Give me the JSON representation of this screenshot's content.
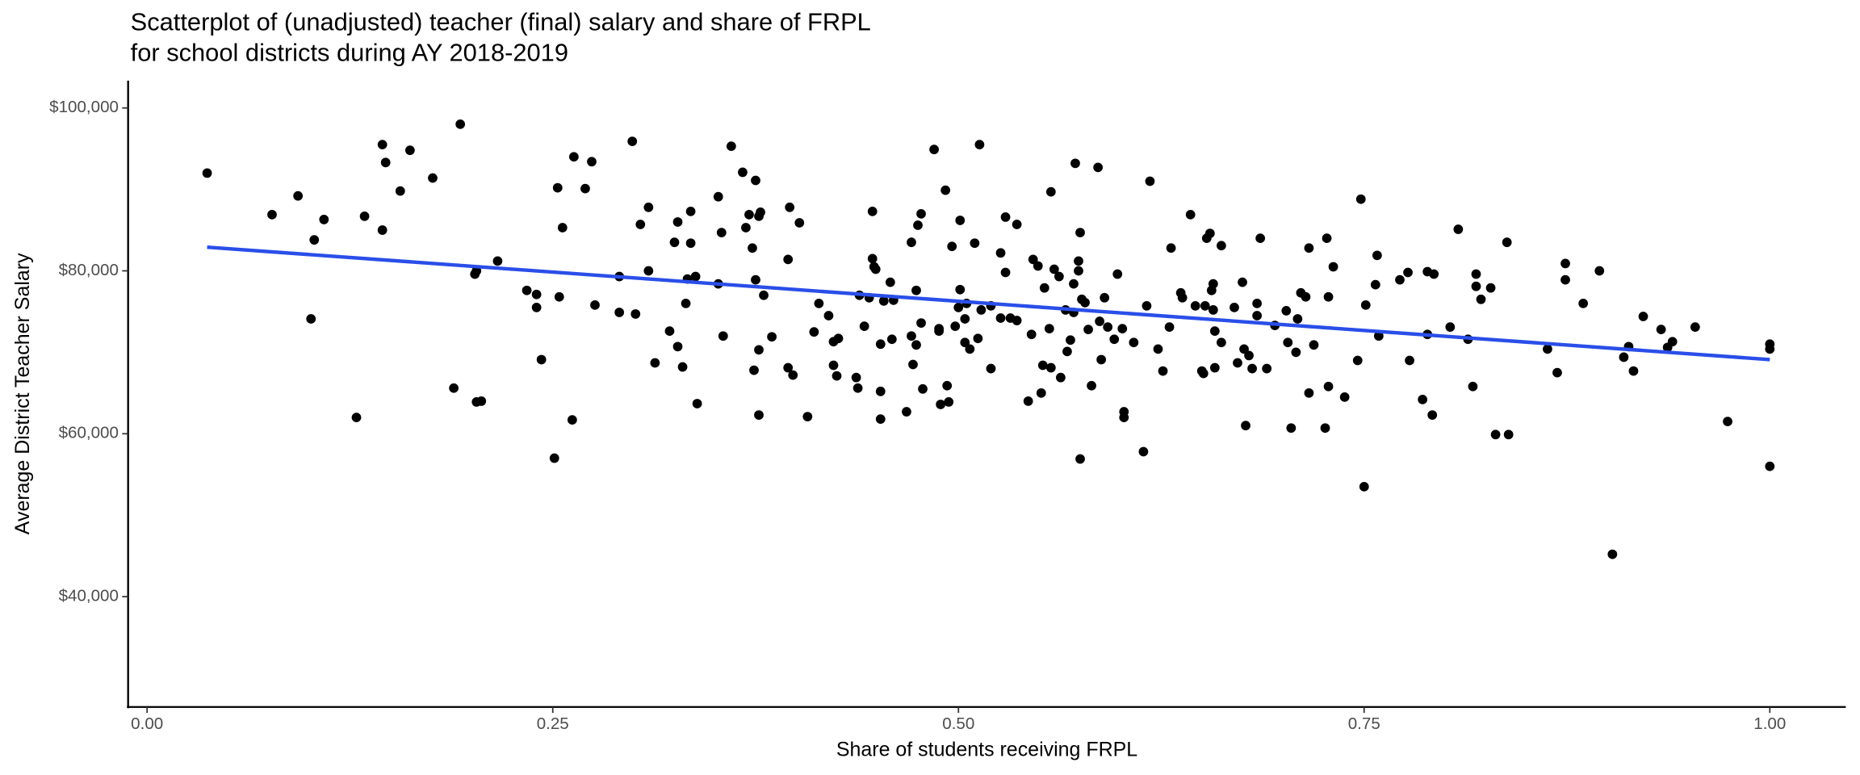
{
  "chart_data": {
    "type": "scatter",
    "title": [
      "Scatterplot of (unadjusted) teacher (final) salary and share of FRPL",
      "for school districts during AY 2018-2019"
    ],
    "x_label": "Share of students receiving FRPL",
    "y_label": "Average District Teacher Salary",
    "point_color": "#000000",
    "x": [
      0.037,
      0.077,
      0.093,
      0.103,
      0.109,
      0.101,
      0.129,
      0.134,
      0.145,
      0.147,
      0.145,
      0.156,
      0.162,
      0.176,
      0.193,
      0.189,
      0.202,
      0.203,
      0.203,
      0.206,
      0.216,
      0.234,
      0.24,
      0.24,
      0.243,
      0.251,
      0.253,
      0.256,
      0.254,
      0.263,
      0.262,
      0.276,
      0.27,
      0.274,
      0.291,
      0.291,
      0.299,
      0.301,
      0.304,
      0.309,
      0.309,
      0.313,
      0.322,
      0.325,
      0.327,
      0.327,
      0.332,
      0.335,
      0.333,
      0.335,
      0.338,
      0.33,
      0.339,
      0.352,
      0.354,
      0.352,
      0.355,
      0.36,
      0.367,
      0.369,
      0.371,
      0.373,
      0.375,
      0.377,
      0.378,
      0.375,
      0.38,
      0.374,
      0.377,
      0.377,
      0.385,
      0.396,
      0.402,
      0.395,
      0.395,
      0.398,
      0.407,
      0.411,
      0.414,
      0.42,
      0.423,
      0.423,
      0.425,
      0.426,
      0.437,
      0.439,
      0.438,
      0.442,
      0.445,
      0.447,
      0.447,
      0.448,
      0.449,
      0.452,
      0.452,
      0.452,
      0.454,
      0.458,
      0.46,
      0.459,
      0.468,
      0.471,
      0.471,
      0.472,
      0.474,
      0.474,
      0.475,
      0.477,
      0.477,
      0.478,
      0.485,
      0.488,
      0.488,
      0.489,
      0.492,
      0.494,
      0.496,
      0.493,
      0.498,
      0.5,
      0.501,
      0.501,
      0.504,
      0.505,
      0.504,
      0.507,
      0.51,
      0.512,
      0.513,
      0.514,
      0.52,
      0.52,
      0.526,
      0.526,
      0.529,
      0.529,
      0.532,
      0.536,
      0.536,
      0.543,
      0.545,
      0.546,
      0.549,
      0.551,
      0.552,
      0.553,
      0.556,
      0.557,
      0.557,
      0.559,
      0.562,
      0.563,
      0.566,
      0.567,
      0.569,
      0.571,
      0.571,
      0.572,
      0.574,
      0.574,
      0.575,
      0.575,
      0.576,
      0.578,
      0.58,
      0.582,
      0.586,
      0.587,
      0.588,
      0.59,
      0.592,
      0.596,
      0.598,
      0.601,
      0.602,
      0.602,
      0.608,
      0.614,
      0.616,
      0.618,
      0.623,
      0.626,
      0.63,
      0.631,
      0.637,
      0.638,
      0.643,
      0.646,
      0.652,
      0.65,
      0.651,
      0.653,
      0.655,
      0.656,
      0.657,
      0.657,
      0.658,
      0.658,
      0.662,
      0.662,
      0.67,
      0.672,
      0.675,
      0.676,
      0.677,
      0.679,
      0.681,
      0.684,
      0.686,
      0.684,
      0.69,
      0.695,
      0.702,
      0.703,
      0.705,
      0.708,
      0.709,
      0.711,
      0.714,
      0.716,
      0.716,
      0.719,
      0.726,
      0.727,
      0.728,
      0.728,
      0.731,
      0.738,
      0.746,
      0.748,
      0.75,
      0.751,
      0.757,
      0.758,
      0.759,
      0.772,
      0.777,
      0.778,
      0.786,
      0.789,
      0.789,
      0.792,
      0.793,
      0.803,
      0.808,
      0.814,
      0.817,
      0.819,
      0.819,
      0.822,
      0.828,
      0.831,
      0.838,
      0.839,
      0.863,
      0.869,
      0.874,
      0.874,
      0.885,
      0.895,
      0.903,
      0.91,
      0.913,
      0.916,
      0.922,
      0.933,
      0.937,
      0.94,
      0.954,
      0.974,
      1.0,
      1.0,
      1.0
    ],
    "values": [
      92000,
      86900,
      89200,
      83800,
      86300,
      74100,
      62000,
      86700,
      95500,
      93300,
      85000,
      89800,
      94800,
      91400,
      98000,
      65600,
      79600,
      80000,
      63900,
      64000,
      81200,
      77600,
      77100,
      75500,
      69100,
      57000,
      90200,
      85300,
      76800,
      94000,
      61700,
      75800,
      90100,
      93400,
      79300,
      74900,
      95900,
      74700,
      85700,
      87800,
      80000,
      68700,
      72600,
      83500,
      86000,
      70700,
      76000,
      87300,
      79000,
      83400,
      79300,
      68200,
      63700,
      89100,
      84700,
      78400,
      72000,
      95300,
      92100,
      85300,
      86900,
      82800,
      91100,
      86700,
      87200,
      78900,
      77000,
      67800,
      70300,
      62300,
      71900,
      87800,
      85900,
      81400,
      68100,
      67200,
      62100,
      72500,
      76000,
      74500,
      68400,
      71300,
      67100,
      71700,
      66900,
      77000,
      65600,
      73200,
      76700,
      87300,
      81500,
      80500,
      80200,
      65200,
      61800,
      71000,
      76300,
      78600,
      76400,
      71600,
      62700,
      72000,
      83500,
      68500,
      70900,
      77600,
      85600,
      87000,
      73600,
      65500,
      94900,
      72900,
      72600,
      63600,
      89900,
      63900,
      83000,
      65900,
      73200,
      75500,
      86200,
      77700,
      71200,
      76000,
      74100,
      70400,
      83400,
      71700,
      95500,
      75200,
      75700,
      68000,
      82200,
      74200,
      86600,
      79800,
      74200,
      73900,
      85700,
      64000,
      72200,
      81400,
      80600,
      65000,
      68400,
      77900,
      72900,
      89700,
      68100,
      80200,
      79300,
      66900,
      75200,
      70100,
      71500,
      74900,
      78400,
      93200,
      81200,
      80000,
      84700,
      56900,
      76500,
      76100,
      72800,
      65900,
      92700,
      73800,
      69100,
      76700,
      73100,
      71600,
      79600,
      72900,
      62700,
      62000,
      71200,
      57800,
      75700,
      91000,
      70400,
      67700,
      73100,
      82800,
      77300,
      76700,
      86900,
      75700,
      75700,
      67700,
      67400,
      84000,
      84600,
      77600,
      78400,
      75200,
      72600,
      68100,
      83100,
      71200,
      75500,
      68700,
      78600,
      70400,
      61000,
      69600,
      68000,
      76000,
      84000,
      74500,
      68000,
      73300,
      75100,
      71200,
      60700,
      70000,
      74100,
      77300,
      76800,
      65000,
      82800,
      70900,
      60700,
      84000,
      65800,
      76800,
      80500,
      64500,
      69000,
      88800,
      53500,
      75800,
      78300,
      81900,
      72000,
      78900,
      79800,
      69000,
      64200,
      79900,
      72200,
      62300,
      79600,
      73100,
      85100,
      71600,
      65800,
      79600,
      78100,
      76500,
      77900,
      59900,
      83500,
      59900,
      70400,
      67500,
      80900,
      78900,
      76000,
      80000,
      45200,
      69400,
      70700,
      67700,
      74400,
      72800,
      70600,
      71300,
      73100,
      61500,
      71000,
      70400,
      56000
    ],
    "fit": {
      "x": [
        0.037,
        1.0
      ],
      "values": [
        82900,
        69100
      ],
      "color": "#2a4ee8"
    },
    "xlim": [
      -0.0117,
      1.0468
    ],
    "ylim": [
      26450,
      103350
    ],
    "xticks": [
      {
        "value": 0,
        "label": "0.00"
      },
      {
        "value": 0.25,
        "label": "0.25"
      },
      {
        "value": 0.5,
        "label": "0.50"
      },
      {
        "value": 0.75,
        "label": "0.75"
      },
      {
        "value": 1,
        "label": "1.00"
      }
    ],
    "yticks": [
      {
        "value": 40000,
        "label": "$40,000"
      },
      {
        "value": 60000,
        "label": "$60,000"
      },
      {
        "value": 80000,
        "label": "$80,000"
      },
      {
        "value": 100000,
        "label": "$100,000"
      }
    ],
    "grid": false
  }
}
